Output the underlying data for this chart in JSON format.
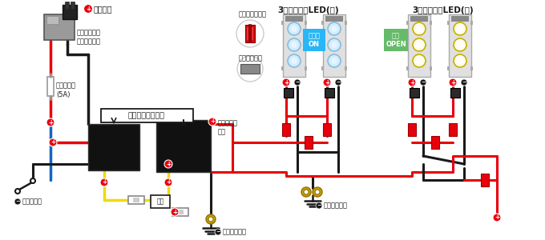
{
  "bg_color": "#ffffff",
  "label_joshi_dengen": "常時電源",
  "label_free_fuse": "フリータイプ\nヒューズ電源",
  "label_tube_fuse": "管ヒューズ\n(5A)",
  "label_relay": "コンパクトリレー",
  "label_junsei": "純正イルミ\n配線",
  "label_door_signal": "ドア信号線",
  "label_body_earth1": "ボディアース",
  "label_body_earth2": "ボディアース",
  "label_connector": "配線コネクター",
  "label_crimp": "圧着接続端子",
  "label_insulate": "絶縁",
  "label_led_blue": "3連フラットLED(青)",
  "label_led_white": "3連フラットLED(白)",
  "label_irumi_on": "イルミ\nON",
  "label_door_open": "ドア\nOPEN",
  "color_red": "#e8000d",
  "color_black": "#1a1a1a",
  "color_yellow": "#f5d800",
  "color_blue": "#1565c0",
  "color_gray": "#888888",
  "color_darkgray": "#444444",
  "color_lightgray": "#cccccc",
  "color_cyan_bg": "#29b6f6",
  "color_green_bg": "#66bb6a",
  "color_white": "#ffffff",
  "color_led_blue_glow": "#b3e5fc",
  "color_led_warm": "#fffde7",
  "color_board": "#e8e8e8"
}
